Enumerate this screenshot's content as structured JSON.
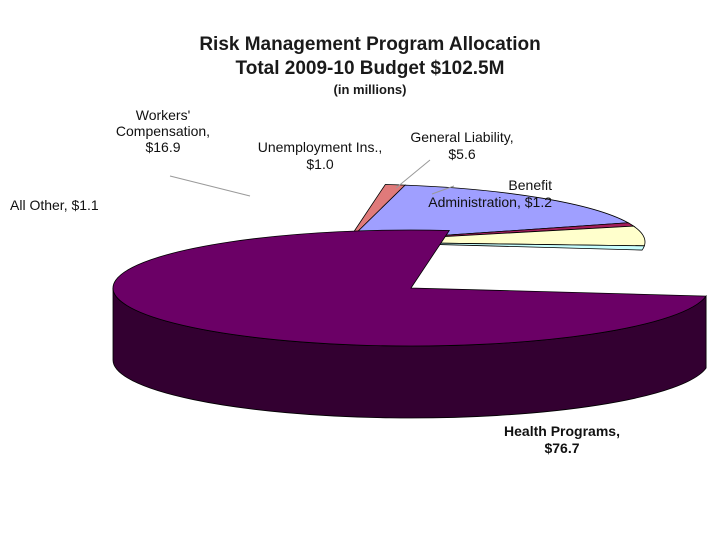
{
  "chart_data": {
    "type": "pie",
    "title": "Risk Management Program Allocation",
    "subtitle": "Total 2009-10 Budget $102.5M",
    "unit_note": "(in millions)",
    "slices": [
      {
        "category": "Health Programs",
        "value": 76.7,
        "label_lines": [
          "Health Programs,",
          "$76.7"
        ],
        "color": "#6b0066"
      },
      {
        "category": "All Other",
        "value": 1.1,
        "label_lines": [
          "All Other,  $1.1"
        ],
        "color": "#e07a7a"
      },
      {
        "category": "Workers' Compensation",
        "value": 16.9,
        "label_lines": [
          "Workers'",
          "Compensation,",
          "$16.9"
        ],
        "color": "#9f9fff"
      },
      {
        "category": "Unemployment Ins.",
        "value": 1.0,
        "label_lines": [
          "Unemployment Ins.,",
          "$1.0"
        ],
        "color": "#a31d5a"
      },
      {
        "category": "General Liability",
        "value": 5.6,
        "label_lines": [
          "General Liability,",
          "$5.6"
        ],
        "color": "#ffffcc"
      },
      {
        "category": "Benefit Administration",
        "value": 1.2,
        "label_lines": [
          "Benefit",
          "Administration,  $1.2"
        ],
        "color": "#c8ffff"
      }
    ],
    "three_d": true,
    "exploded_slice": "Health Programs",
    "legend": "none"
  }
}
